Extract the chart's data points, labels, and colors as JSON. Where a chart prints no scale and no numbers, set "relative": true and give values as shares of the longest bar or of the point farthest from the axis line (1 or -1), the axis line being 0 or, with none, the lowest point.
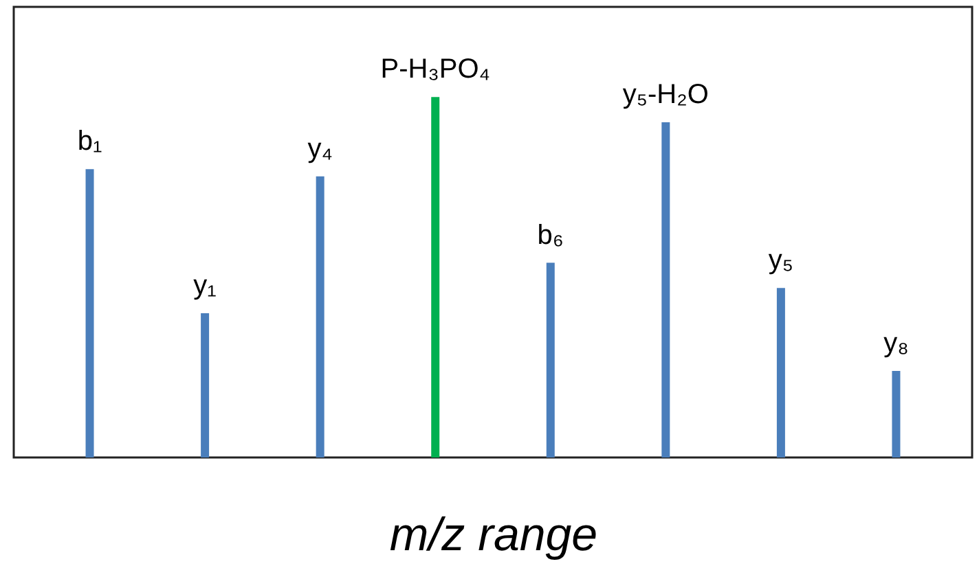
{
  "chart_data": {
    "type": "bar",
    "relative": true,
    "xlabel": "m/z range",
    "categories": [
      "b₁",
      "y₁",
      "y₄",
      "P-H₃PO₄",
      "b₆",
      "y₅-H₂O",
      "y₅",
      "y₈"
    ],
    "values": [
      0.8,
      0.4,
      0.78,
      1,
      0.54,
      0.93,
      0.47,
      0.24
    ],
    "colors": [
      "#4a7ebb",
      "#4a7ebb",
      "#4a7ebb",
      "#00b050",
      "#4a7ebb",
      "#4a7ebb",
      "#4a7ebb",
      "#4a7ebb"
    ],
    "grid": false
  }
}
